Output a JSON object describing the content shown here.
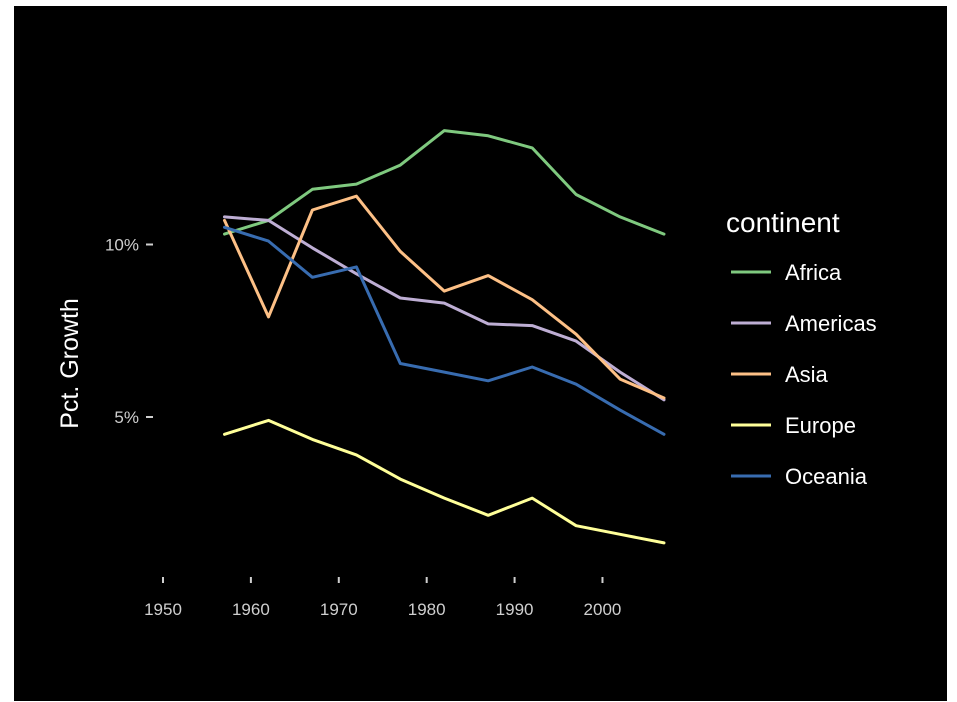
{
  "chart_data": {
    "type": "line",
    "title": "",
    "xlabel": "",
    "ylabel": "Pct. Growth",
    "x": [
      1957,
      1962,
      1967,
      1972,
      1977,
      1982,
      1987,
      1992,
      1997,
      2002,
      2007
    ],
    "xlim": [
      1950,
      2007
    ],
    "ylim": [
      1.0,
      15.0
    ],
    "x_ticks": [
      1950,
      1960,
      1970,
      1980,
      1990,
      2000
    ],
    "x_tick_labels": [
      "1950",
      "1960",
      "1970",
      "1980",
      "1990",
      "2000"
    ],
    "y_ticks": [
      5,
      10
    ],
    "y_tick_labels": [
      "5%",
      "10%"
    ],
    "grid": false,
    "legend": {
      "title": "continent",
      "placement": "right"
    },
    "series": [
      {
        "name": "Africa",
        "color": "#7fc97f",
        "values": [
          10.3,
          10.7,
          11.6,
          11.75,
          12.3,
          13.3,
          13.15,
          12.8,
          11.45,
          10.8,
          10.3
        ]
      },
      {
        "name": "Americas",
        "color": "#beaed4",
        "values": [
          10.8,
          10.7,
          9.9,
          9.15,
          8.45,
          8.3,
          7.7,
          7.65,
          7.2,
          6.3,
          5.5
        ]
      },
      {
        "name": "Asia",
        "color": "#fdc086",
        "values": [
          10.7,
          7.9,
          11.0,
          11.4,
          9.8,
          8.65,
          9.1,
          8.4,
          7.4,
          6.1,
          5.55
        ]
      },
      {
        "name": "Europe",
        "color": "#ffff99",
        "values": [
          4.5,
          4.9,
          4.35,
          3.9,
          3.2,
          2.65,
          2.15,
          2.65,
          1.85,
          1.6,
          1.35
        ]
      },
      {
        "name": "Oceania",
        "color": "#386cb0",
        "values": [
          10.5,
          10.1,
          9.05,
          9.35,
          6.55,
          6.3,
          6.05,
          6.45,
          5.95,
          5.2,
          4.5
        ]
      }
    ]
  }
}
